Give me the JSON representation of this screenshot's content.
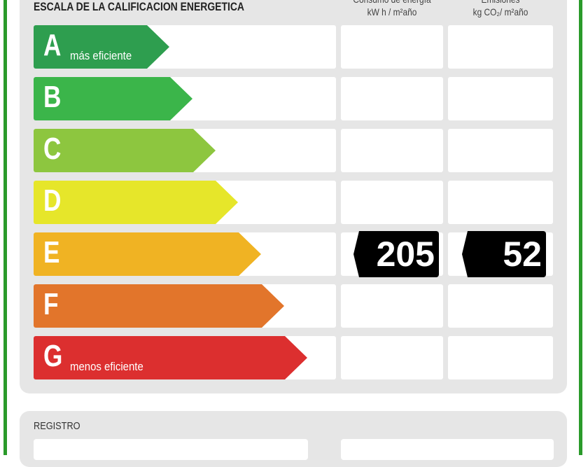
{
  "header": {
    "title": "ESCALA DE LA CALIFICACION ENERGETICA",
    "col_energy": {
      "line1": "Consumo de energía",
      "line2": "kW h / m²año"
    },
    "col_emissions": {
      "line1": "Emisiones",
      "line2": "kg CO₂/ m²año"
    }
  },
  "ratings": [
    {
      "letter": "A",
      "sub": "más eficiente",
      "color": "#2e9e4f"
    },
    {
      "letter": "B",
      "sub": "",
      "color": "#3bb54a"
    },
    {
      "letter": "C",
      "sub": "",
      "color": "#8dc63f"
    },
    {
      "letter": "D",
      "sub": "",
      "color": "#e6e62a"
    },
    {
      "letter": "E",
      "sub": "",
      "color": "#f0b323"
    },
    {
      "letter": "F",
      "sub": "",
      "color": "#e2752b"
    },
    {
      "letter": "G",
      "sub": "menos eficiente",
      "color": "#dc2f2f"
    }
  ],
  "current": {
    "rating": "E",
    "energy": "205",
    "emissions": "52"
  },
  "registro": {
    "label": "REGISTRO"
  }
}
